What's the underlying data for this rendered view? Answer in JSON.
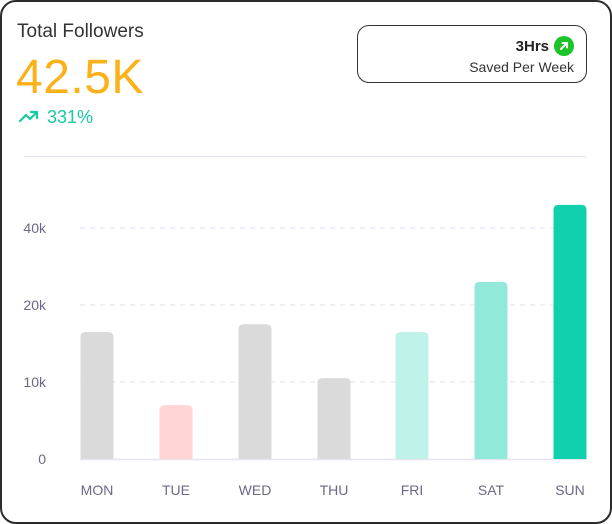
{
  "header": {
    "title": "Total Followers",
    "value": "42.5K",
    "change": "331%",
    "change_icon": "trending-up-icon"
  },
  "badge": {
    "value": "3Hrs",
    "label": "Saved Per Week",
    "icon": "arrow-up-right-icon"
  },
  "colors": {
    "accent": "#fbb21a",
    "positive": "#16c9a3",
    "badge_icon": "#1cc42a"
  },
  "chart_data": {
    "type": "bar",
    "title": "",
    "xlabel": "",
    "ylabel": "",
    "categories": [
      "MON",
      "TUE",
      "WED",
      "THU",
      "FRI",
      "SAT",
      "SUN"
    ],
    "values": [
      16500,
      7000,
      17500,
      10500,
      16500,
      26000,
      46000
    ],
    "colors": [
      "#dadada",
      "#ffd5d5",
      "#dadada",
      "#dadada",
      "#bff2e8",
      "#93e9d9",
      "#10d1ae"
    ],
    "yticks": [
      0,
      10000,
      20000,
      40000
    ],
    "ytick_labels": [
      "0",
      "10k",
      "20k",
      "40k"
    ],
    "ylim": [
      0,
      46000
    ],
    "grid": true,
    "legend": "none"
  }
}
